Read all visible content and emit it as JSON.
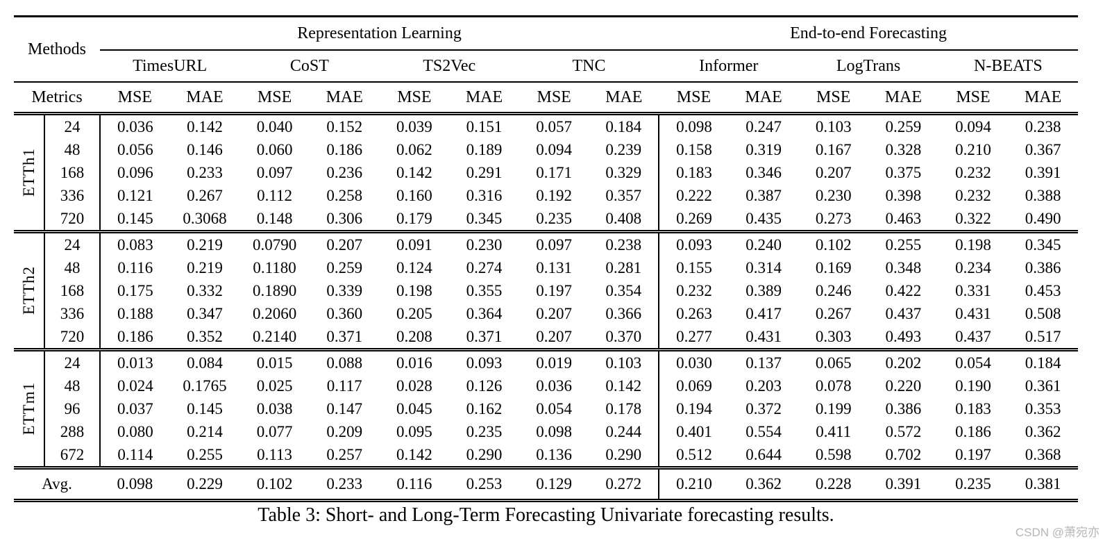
{
  "table": {
    "corner_label": "Methods",
    "metrics_label": "Metrics",
    "sections": [
      {
        "label": "Representation Learning",
        "methods": [
          "TimesURL",
          "CoST",
          "TS2Vec",
          "TNC"
        ]
      },
      {
        "label": "End-to-end Forecasting",
        "methods": [
          "Informer",
          "LogTrans",
          "N-BEATS"
        ]
      }
    ],
    "metrics": [
      "MSE",
      "MAE"
    ],
    "groups": [
      {
        "name": "ETTh1",
        "rows": [
          {
            "horizon": "24",
            "values": [
              "0.036",
              "0.142",
              "0.040",
              "0.152",
              "0.039",
              "0.151",
              "0.057",
              "0.184",
              "0.098",
              "0.247",
              "0.103",
              "0.259",
              "0.094",
              "0.238"
            ],
            "bold": [
              0,
              1
            ]
          },
          {
            "horizon": "48",
            "values": [
              "0.056",
              "0.146",
              "0.060",
              "0.186",
              "0.062",
              "0.189",
              "0.094",
              "0.239",
              "0.158",
              "0.319",
              "0.167",
              "0.328",
              "0.210",
              "0.367"
            ],
            "bold": [
              0,
              1
            ]
          },
          {
            "horizon": "168",
            "values": [
              "0.096",
              "0.233",
              "0.097",
              "0.236",
              "0.142",
              "0.291",
              "0.171",
              "0.329",
              "0.183",
              "0.346",
              "0.207",
              "0.375",
              "0.232",
              "0.391"
            ],
            "bold": [
              0,
              1
            ]
          },
          {
            "horizon": "336",
            "values": [
              "0.121",
              "0.267",
              "0.112",
              "0.258",
              "0.160",
              "0.316",
              "0.192",
              "0.357",
              "0.222",
              "0.387",
              "0.230",
              "0.398",
              "0.232",
              "0.388"
            ],
            "bold": [
              2,
              3
            ]
          },
          {
            "horizon": "720",
            "values": [
              "0.145",
              "0.3068",
              "0.148",
              "0.306",
              "0.179",
              "0.345",
              "0.235",
              "0.408",
              "0.269",
              "0.435",
              "0.273",
              "0.463",
              "0.322",
              "0.490"
            ],
            "bold": [
              0,
              3
            ]
          }
        ]
      },
      {
        "name": "ETTh2",
        "rows": [
          {
            "horizon": "24",
            "values": [
              "0.083",
              "0.219",
              "0.0790",
              "0.207",
              "0.091",
              "0.230",
              "0.097",
              "0.238",
              "0.093",
              "0.240",
              "0.102",
              "0.255",
              "0.198",
              "0.345"
            ],
            "bold": [
              2,
              3
            ]
          },
          {
            "horizon": "48",
            "values": [
              "0.116",
              "0.219",
              "0.1180",
              "0.259",
              "0.124",
              "0.274",
              "0.131",
              "0.281",
              "0.155",
              "0.314",
              "0.169",
              "0.348",
              "0.234",
              "0.386"
            ],
            "bold": [
              0,
              1
            ]
          },
          {
            "horizon": "168",
            "values": [
              "0.175",
              "0.332",
              "0.1890",
              "0.339",
              "0.198",
              "0.355",
              "0.197",
              "0.354",
              "0.232",
              "0.389",
              "0.246",
              "0.422",
              "0.331",
              "0.453"
            ],
            "bold": [
              0,
              1
            ]
          },
          {
            "horizon": "336",
            "values": [
              "0.188",
              "0.347",
              "0.2060",
              "0.360",
              "0.205",
              "0.364",
              "0.207",
              "0.366",
              "0.263",
              "0.417",
              "0.267",
              "0.437",
              "0.431",
              "0.508"
            ],
            "bold": [
              0,
              1
            ]
          },
          {
            "horizon": "720",
            "values": [
              "0.186",
              "0.352",
              "0.2140",
              "0.371",
              "0.208",
              "0.371",
              "0.207",
              "0.370",
              "0.277",
              "0.431",
              "0.303",
              "0.493",
              "0.437",
              "0.517"
            ],
            "bold": [
              0,
              1
            ]
          }
        ]
      },
      {
        "name": "ETTm1",
        "rows": [
          {
            "horizon": "24",
            "values": [
              "0.013",
              "0.084",
              "0.015",
              "0.088",
              "0.016",
              "0.093",
              "0.019",
              "0.103",
              "0.030",
              "0.137",
              "0.065",
              "0.202",
              "0.054",
              "0.184"
            ],
            "bold": [
              0,
              1
            ]
          },
          {
            "horizon": "48",
            "values": [
              "0.024",
              "0.1765",
              "0.025",
              "0.117",
              "0.028",
              "0.126",
              "0.036",
              "0.142",
              "0.069",
              "0.203",
              "0.078",
              "0.220",
              "0.190",
              "0.361"
            ],
            "bold": [
              0,
              3
            ]
          },
          {
            "horizon": "96",
            "values": [
              "0.037",
              "0.145",
              "0.038",
              "0.147",
              "0.045",
              "0.162",
              "0.054",
              "0.178",
              "0.194",
              "0.372",
              "0.199",
              "0.386",
              "0.183",
              "0.353"
            ],
            "bold": [
              0,
              1
            ]
          },
          {
            "horizon": "288",
            "values": [
              "0.080",
              "0.214",
              "0.077",
              "0.209",
              "0.095",
              "0.235",
              "0.098",
              "0.244",
              "0.401",
              "0.554",
              "0.411",
              "0.572",
              "0.186",
              "0.362"
            ],
            "bold": [
              2,
              3
            ]
          },
          {
            "horizon": "672",
            "values": [
              "0.114",
              "0.255",
              "0.113",
              "0.257",
              "0.142",
              "0.290",
              "0.136",
              "0.290",
              "0.512",
              "0.644",
              "0.598",
              "0.702",
              "0.197",
              "0.368"
            ],
            "bold": [
              1,
              2
            ]
          }
        ]
      }
    ],
    "avg_row": {
      "label": "Avg.",
      "values": [
        "0.098",
        "0.229",
        "0.102",
        "0.233",
        "0.116",
        "0.253",
        "0.129",
        "0.272",
        "0.210",
        "0.362",
        "0.228",
        "0.391",
        "0.235",
        "0.381"
      ],
      "bold": [
        0,
        1
      ]
    }
  },
  "caption": "Table 3: Short- and Long-Term Forecasting Univariate forecasting results.",
  "watermark": "CSDN @萧宛亦"
}
